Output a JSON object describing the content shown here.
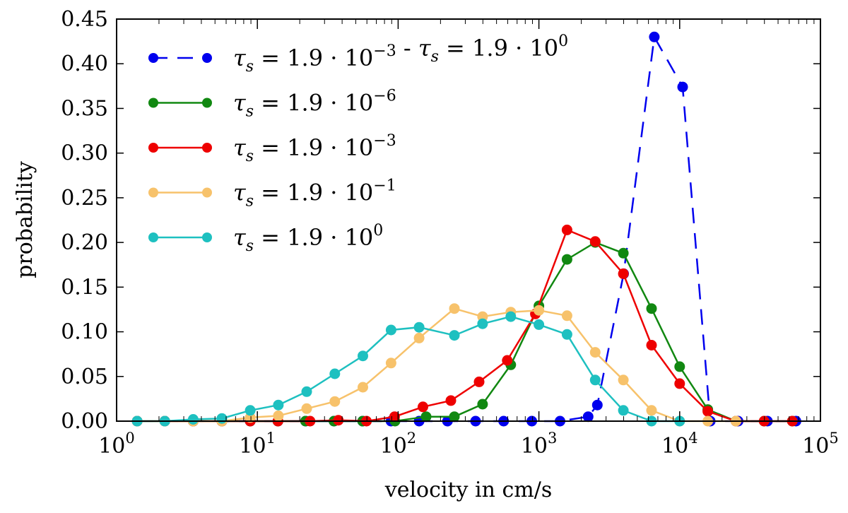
{
  "chart_data": {
    "type": "line",
    "title": "",
    "xlabel": "velocity in cm/s",
    "ylabel": "probability",
    "xscale": "log",
    "xlim": [
      1,
      100000
    ],
    "ylim": [
      0,
      0.45
    ],
    "grid": false,
    "legend_position": "top-left",
    "x_ticks": [
      {
        "value": 1,
        "base": "10",
        "exp": "0"
      },
      {
        "value": 10,
        "base": "10",
        "exp": "1"
      },
      {
        "value": 100,
        "base": "10",
        "exp": "2"
      },
      {
        "value": 1000,
        "base": "10",
        "exp": "3"
      },
      {
        "value": 10000,
        "base": "10",
        "exp": "4"
      },
      {
        "value": 100000,
        "base": "10",
        "exp": "5"
      }
    ],
    "y_ticks": [
      {
        "value": 0.0,
        "label": "0.00"
      },
      {
        "value": 0.05,
        "label": "0.05"
      },
      {
        "value": 0.1,
        "label": "0.10"
      },
      {
        "value": 0.15,
        "label": "0.15"
      },
      {
        "value": 0.2,
        "label": "0.20"
      },
      {
        "value": 0.25,
        "label": "0.25"
      },
      {
        "value": 0.3,
        "label": "0.30"
      },
      {
        "value": 0.35,
        "label": "0.35"
      },
      {
        "value": 0.4,
        "label": "0.40"
      },
      {
        "value": 0.45,
        "label": "0.45"
      }
    ],
    "series": [
      {
        "name": "τs = 1.9·10^-3 - τs = 1.9·10^0",
        "legend": {
          "exp1": "−3",
          "sep": " - ",
          "exp2": "0"
        },
        "color": "#0000ee",
        "dashed": true,
        "x": [
          1.4,
          2.2,
          3.5,
          5.6,
          8.9,
          14,
          22,
          35,
          56,
          89,
          141,
          224,
          355,
          562,
          891,
          1413,
          2239,
          2600,
          4000,
          6600,
          10500,
          16500,
          26000,
          42000,
          67000
        ],
        "values": [
          0,
          0,
          0,
          0,
          0,
          0,
          0,
          0,
          0,
          0,
          0,
          0,
          0,
          0,
          0,
          0,
          0.005,
          0.018,
          0.165,
          0.43,
          0.374,
          0.0,
          0,
          0,
          0
        ]
      },
      {
        "name": "τs = 1.9·10^-6",
        "legend": {
          "exp1": "−6"
        },
        "color": "#118811",
        "dashed": false,
        "x": [
          1.4,
          2.2,
          3.5,
          5.6,
          8.9,
          14,
          22,
          35,
          56,
          95,
          158,
          251,
          398,
          631,
          1000,
          1585,
          2512,
          3981,
          6310,
          10000,
          15849,
          25119,
          39811,
          63096
        ],
        "values": [
          0,
          0,
          0,
          0,
          0,
          0,
          0,
          0,
          0,
          0,
          0.005,
          0.005,
          0.019,
          0.063,
          0.129,
          0.181,
          0.2,
          0.188,
          0.126,
          0.061,
          0.013,
          0,
          0,
          0
        ]
      },
      {
        "name": "τs = 1.9·10^-3",
        "legend": {
          "exp1": "−3"
        },
        "color": "#ee0000",
        "dashed": false,
        "x": [
          1.4,
          2.2,
          3.5,
          5.6,
          8.9,
          14,
          23.7,
          37.6,
          59.6,
          94.4,
          150,
          237,
          376,
          596,
          944,
          1585,
          2512,
          3981,
          6310,
          10000,
          15849,
          25119,
          39811,
          63096
        ],
        "values": [
          0,
          0,
          0,
          0,
          0,
          0,
          0,
          0.001,
          0,
          0.005,
          0.016,
          0.023,
          0.044,
          0.068,
          0.12,
          0.214,
          0.201,
          0.165,
          0.085,
          0.042,
          0.011,
          0,
          0,
          0
        ]
      },
      {
        "name": "τs = 1.9·10^-1",
        "legend": {
          "exp1": "−1"
        },
        "color": "#f7c26b",
        "dashed": false,
        "x": [
          1.4,
          2.2,
          3.5,
          5.6,
          8.9,
          14.1,
          22.4,
          35.5,
          56.2,
          89.1,
          141,
          251,
          398,
          631,
          1000,
          1585,
          2512,
          3981,
          6310,
          10000,
          15849,
          25119
        ],
        "values": [
          0,
          0,
          0,
          0,
          0.004,
          0.006,
          0.014,
          0.022,
          0.038,
          0.065,
          0.093,
          0.126,
          0.117,
          0.122,
          0.124,
          0.118,
          0.077,
          0.046,
          0.012,
          0,
          0,
          0
        ]
      },
      {
        "name": "τs = 1.9·10^0",
        "legend": {
          "exp1": "0"
        },
        "color": "#1ec0c0",
        "dashed": false,
        "x": [
          1.4,
          2.2,
          3.5,
          5.6,
          8.9,
          14.1,
          22.4,
          35.5,
          56.2,
          89.1,
          141,
          251,
          398,
          631,
          1000,
          1585,
          2512,
          3981,
          6310,
          10000
        ],
        "values": [
          0,
          0,
          0.002,
          0.003,
          0.012,
          0.018,
          0.033,
          0.053,
          0.073,
          0.102,
          0.105,
          0.096,
          0.109,
          0.117,
          0.108,
          0.097,
          0.046,
          0.012,
          0,
          0
        ]
      }
    ]
  }
}
